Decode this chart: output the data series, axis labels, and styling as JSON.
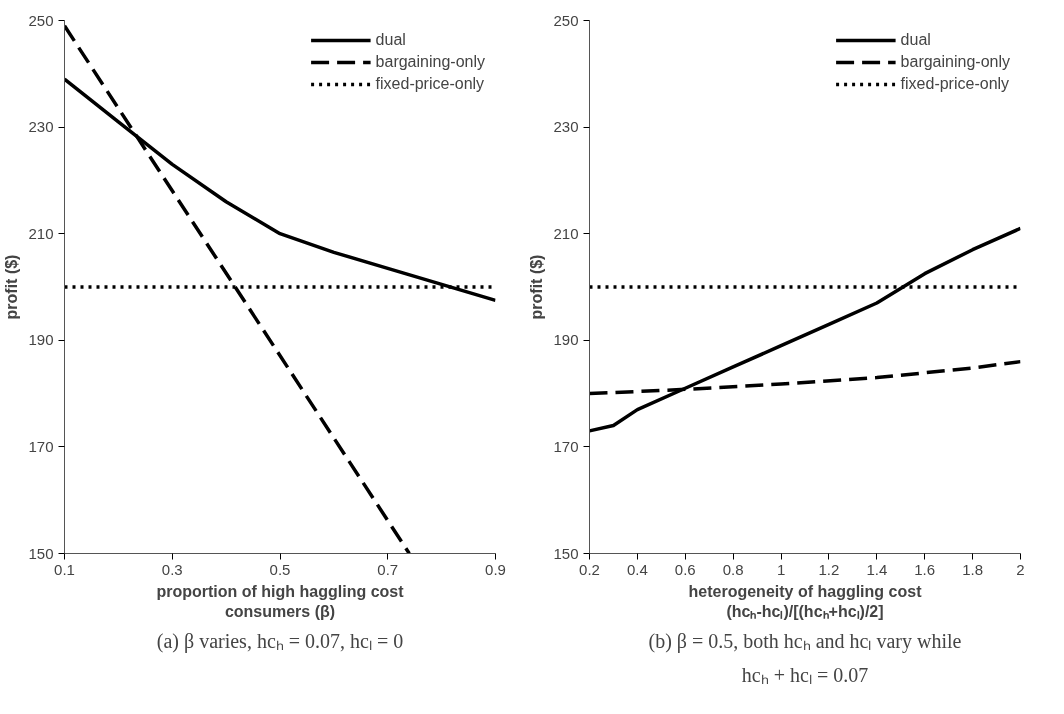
{
  "chart_data": [
    {
      "type": "line",
      "xlabel": "proportion of high haggling cost\nconsumers (β)",
      "ylabel": "profit ($)",
      "xlim": [
        0.1,
        0.9
      ],
      "ylim": [
        150,
        250
      ],
      "xticks": [
        0.1,
        0.3,
        0.5,
        0.7,
        0.9
      ],
      "yticks": [
        150,
        170,
        190,
        210,
        230,
        250
      ],
      "legend": "top right",
      "annotations": [
        "(a) β varies, hcₕ = 0.07, hcₗ = 0"
      ],
      "series": [
        {
          "name": "dual",
          "color": "#000000",
          "line_style": "solid",
          "x": [
            0.1,
            0.2,
            0.3,
            0.4,
            0.5,
            0.6,
            0.7,
            0.8,
            0.9
          ],
          "values": [
            239,
            231,
            223,
            216,
            210,
            206.5,
            203.5,
            200.5,
            197.5
          ]
        },
        {
          "name": "bargaining-only",
          "color": "#000000",
          "line_style": "dashed",
          "x": [
            0.1,
            0.74
          ],
          "values": [
            249,
            150
          ]
        },
        {
          "name": "fixed-price-only",
          "color": "#000000",
          "line_style": "dotted",
          "x": [
            0.1,
            0.9
          ],
          "values": [
            200,
            200
          ]
        }
      ]
    },
    {
      "type": "line",
      "xlabel": "heterogeneity of haggling cost\n(hcₕ-hcₗ)/[(hcₕ+hcₗ)/2]",
      "ylabel": "profit ($)",
      "xlim": [
        0.2,
        2
      ],
      "ylim": [
        150,
        250
      ],
      "xticks": [
        0.2,
        0.4,
        0.6,
        0.8,
        {
          "value": 1,
          "label": "1"
        },
        1.2,
        1.4,
        1.6,
        1.8,
        {
          "value": 2,
          "label": "2"
        }
      ],
      "yticks": [
        150,
        170,
        190,
        210,
        230,
        250
      ],
      "legend": "top right",
      "annotations": [
        "(b) β = 0.5, both hcₕ and hcₗ vary while\nhcₕ + hcₗ = 0.07"
      ],
      "series": [
        {
          "name": "dual",
          "color": "#000000",
          "line_style": "solid",
          "x": [
            0.2,
            0.3,
            0.4,
            0.6,
            0.8,
            1.0,
            1.2,
            1.4,
            1.6,
            1.8,
            2.0
          ],
          "values": [
            173,
            174,
            177,
            181,
            185,
            189,
            193,
            197,
            202.5,
            207,
            211
          ]
        },
        {
          "name": "bargaining-only",
          "color": "#000000",
          "line_style": "dashed",
          "x": [
            0.2,
            0.6,
            1.0,
            1.4,
            1.8,
            2.0
          ],
          "values": [
            180,
            180.8,
            181.8,
            183,
            184.8,
            186
          ]
        },
        {
          "name": "fixed-price-only",
          "color": "#000000",
          "line_style": "dotted",
          "x": [
            0.2,
            2.0
          ],
          "values": [
            200,
            200
          ]
        }
      ]
    }
  ]
}
